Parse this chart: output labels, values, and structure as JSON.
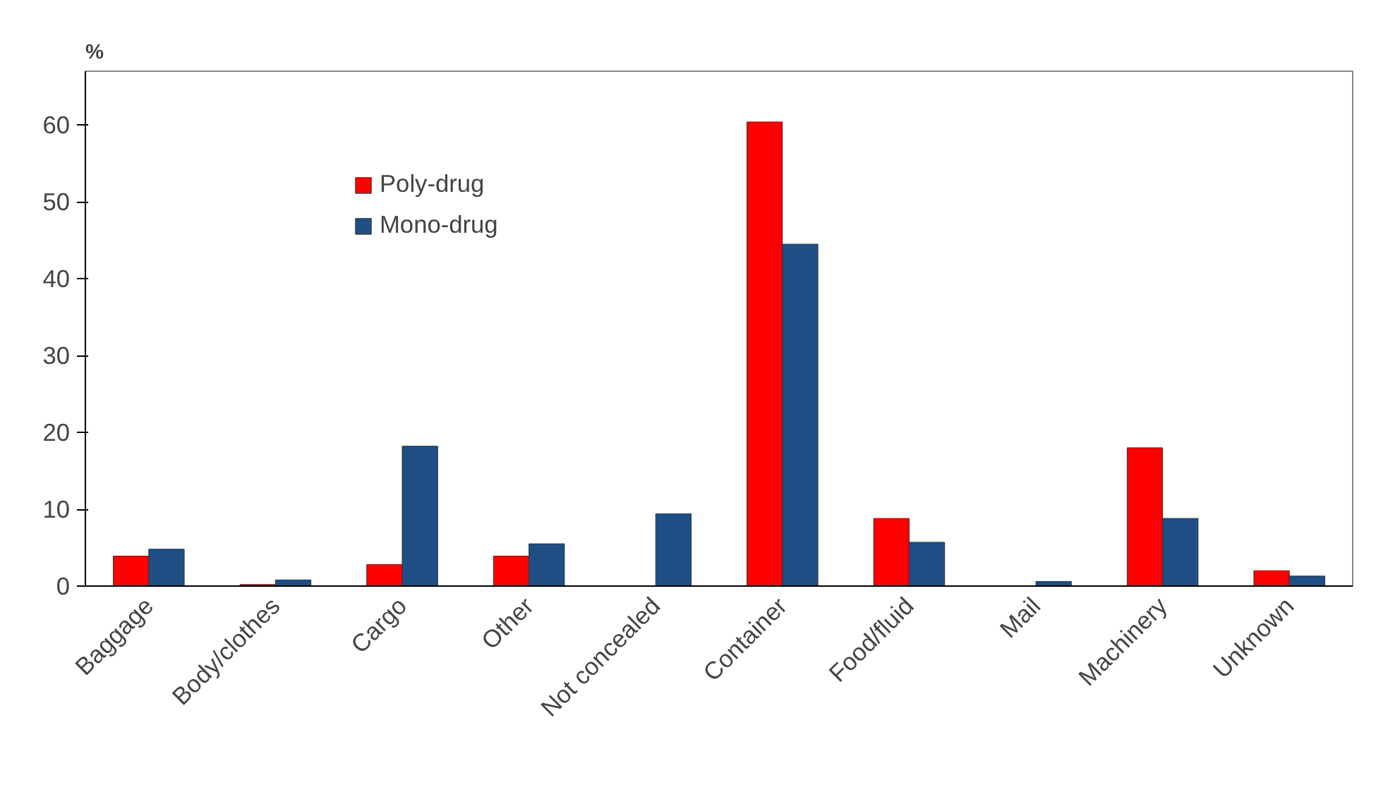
{
  "chart_data": {
    "type": "bar",
    "ylabel": "%",
    "categories": [
      "Baggage",
      "Body/clothes",
      "Cargo",
      "Other",
      "Not concealed",
      "Container",
      "Food/fluid",
      "Mail",
      "Machinery",
      "Unknown"
    ],
    "series": [
      {
        "name": "Poly-drug",
        "color": "#ff0000",
        "values": [
          3.9,
          0.2,
          2.8,
          3.9,
          null,
          60.4,
          8.8,
          null,
          18.0,
          2.0
        ]
      },
      {
        "name": "Mono-drug",
        "color": "#1f4e85",
        "values": [
          4.8,
          0.8,
          18.2,
          5.5,
          9.4,
          44.5,
          5.7,
          0.6,
          8.8,
          1.3
        ]
      }
    ],
    "ylim": [
      0,
      67
    ],
    "yticks": [
      0,
      10,
      20,
      30,
      40,
      50,
      60
    ],
    "grid": false,
    "legend": "top left"
  }
}
